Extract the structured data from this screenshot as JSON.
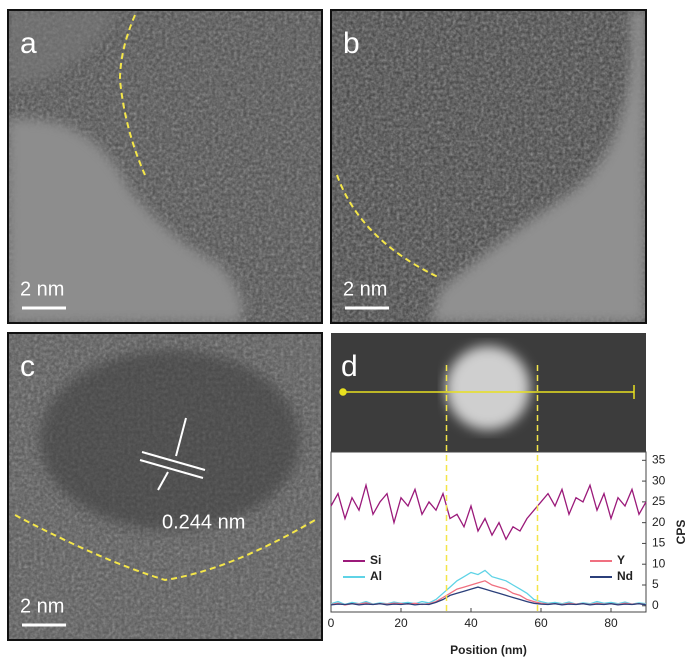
{
  "panels": [
    {
      "label": "a",
      "scale_bar": "2 nm"
    },
    {
      "label": "b",
      "scale_bar": "2 nm"
    },
    {
      "label": "c",
      "scale_bar": "2 nm"
    },
    {
      "label": "d"
    }
  ],
  "annotation": "0.244 nm",
  "chart_data": {
    "type": "line",
    "x_label": "Position (nm)",
    "y_label": "CPS",
    "x": [
      0,
      2,
      4,
      6,
      8,
      10,
      12,
      14,
      16,
      18,
      20,
      22,
      24,
      26,
      28,
      30,
      32,
      34,
      36,
      38,
      40,
      42,
      44,
      46,
      48,
      50,
      52,
      54,
      56,
      58,
      60,
      62,
      64,
      66,
      68,
      70,
      72,
      74,
      76,
      78,
      80,
      82,
      84,
      86,
      88,
      90
    ],
    "series": [
      {
        "name": "Si",
        "color": "#9b1a7a",
        "values": [
          24,
          27,
          21,
          26,
          23,
          29,
          22,
          25,
          27,
          20,
          26,
          24,
          28,
          22,
          25,
          23,
          27,
          21,
          22,
          19,
          24,
          18,
          21,
          17,
          20,
          16,
          19,
          18,
          21,
          23,
          25,
          27,
          24,
          28,
          22,
          26,
          25,
          29,
          23,
          27,
          21,
          26,
          24,
          28,
          22,
          25
        ]
      },
      {
        "name": "Al",
        "color": "#5fd3e6",
        "values": [
          0.5,
          1,
          0.3,
          0.8,
          0.5,
          1,
          0.4,
          0.7,
          0.5,
          0.9,
          0.6,
          0.8,
          0.5,
          1,
          0.7,
          1.5,
          3,
          4.5,
          6,
          7,
          8,
          7.5,
          8.5,
          7,
          6.5,
          6,
          5,
          4,
          3,
          1.5,
          1,
          0.6,
          0.8,
          0.5,
          0.9,
          0.4,
          0.7,
          0.5,
          1,
          0.6,
          0.8,
          0.5,
          0.9,
          0.4,
          0.7,
          0.5
        ]
      },
      {
        "name": "Y",
        "color": "#f07080",
        "values": [
          0.3,
          0.6,
          0.2,
          0.5,
          0.4,
          0.7,
          0.3,
          0.5,
          0.4,
          0.6,
          0.5,
          0.4,
          0.6,
          0.3,
          0.5,
          1,
          2,
          3,
          4,
          4.5,
          5,
          5.5,
          6,
          5,
          4.5,
          4,
          3,
          2.5,
          1.5,
          1,
          0.6,
          0.4,
          0.5,
          0.3,
          0.6,
          0.4,
          0.5,
          0.3,
          0.6,
          0.4,
          0.5,
          0.3,
          0.6,
          0.4,
          0.5,
          0.3
        ]
      },
      {
        "name": "Nd",
        "color": "#2b3f7a",
        "values": [
          0.2,
          0.4,
          0.3,
          0.5,
          0.2,
          0.4,
          0.3,
          0.5,
          0.2,
          0.4,
          0.3,
          0.5,
          0.2,
          0.4,
          0.3,
          0.8,
          1.5,
          2.5,
          3,
          3.5,
          4,
          4.5,
          4,
          3.5,
          3,
          2.5,
          2,
          1.5,
          1,
          0.6,
          0.4,
          0.3,
          0.5,
          0.2,
          0.4,
          0.3,
          0.5,
          0.2,
          0.4,
          0.3,
          0.5,
          0.2,
          0.4,
          0.3,
          0.5,
          0.2
        ]
      }
    ],
    "xlim": [
      0,
      90
    ],
    "xticks": [
      0,
      20,
      40,
      60,
      80
    ],
    "ylim": [
      -1.5,
      37
    ],
    "yticks": [
      0,
      5,
      10,
      15,
      20,
      25,
      30,
      35
    ]
  }
}
